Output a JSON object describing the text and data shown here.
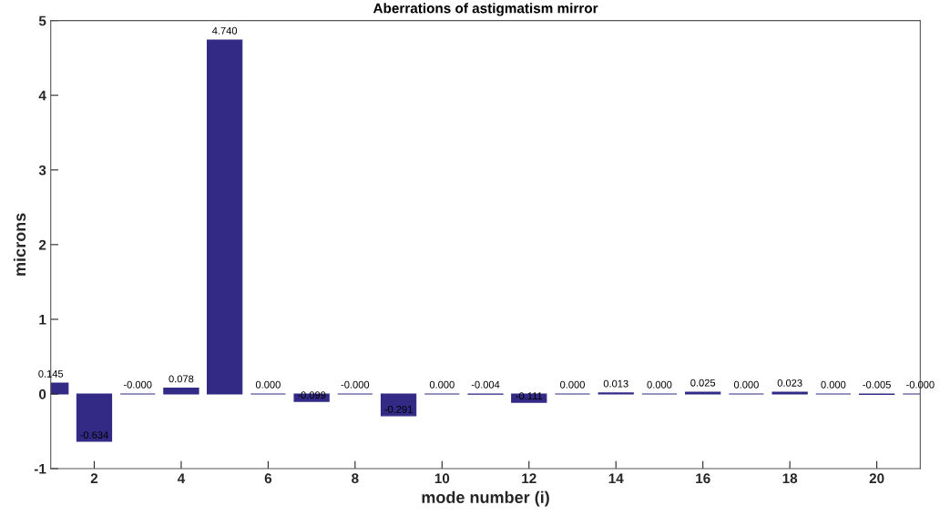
{
  "chart_data": {
    "type": "bar",
    "title": "Aberrations of astigmatism mirror",
    "xlabel": "mode number (i)",
    "ylabel": "microns",
    "x": [
      1,
      2,
      3,
      4,
      5,
      6,
      7,
      8,
      9,
      10,
      11,
      12,
      13,
      14,
      15,
      16,
      17,
      18,
      19,
      20,
      21
    ],
    "values": [
      0.145,
      -0.634,
      0,
      0.078,
      4.74,
      0,
      -0.099,
      0,
      -0.291,
      0,
      -0.004,
      -0.111,
      0,
      0.013,
      0,
      0.025,
      0,
      0.023,
      0,
      -0.005,
      0
    ],
    "value_labels": [
      "0.145",
      "-0.634",
      "-0.000",
      "0.078",
      "4.740",
      "0.000",
      "-0.099",
      "-0.000",
      "-0.291",
      "0.000",
      "-0.004",
      "-0.111",
      "0.000",
      "0.013",
      "0.000",
      "0.025",
      "0.000",
      "0.023",
      "0.000",
      "-0.005",
      "-0.000"
    ],
    "color": "#332a86",
    "xlim": [
      1,
      21
    ],
    "xticks": [
      2,
      4,
      6,
      8,
      10,
      12,
      14,
      16,
      18,
      20
    ],
    "ylim": [
      -1,
      5
    ],
    "yticks": [
      -1,
      0,
      1,
      2,
      3,
      4,
      5
    ],
    "grid": false
  }
}
